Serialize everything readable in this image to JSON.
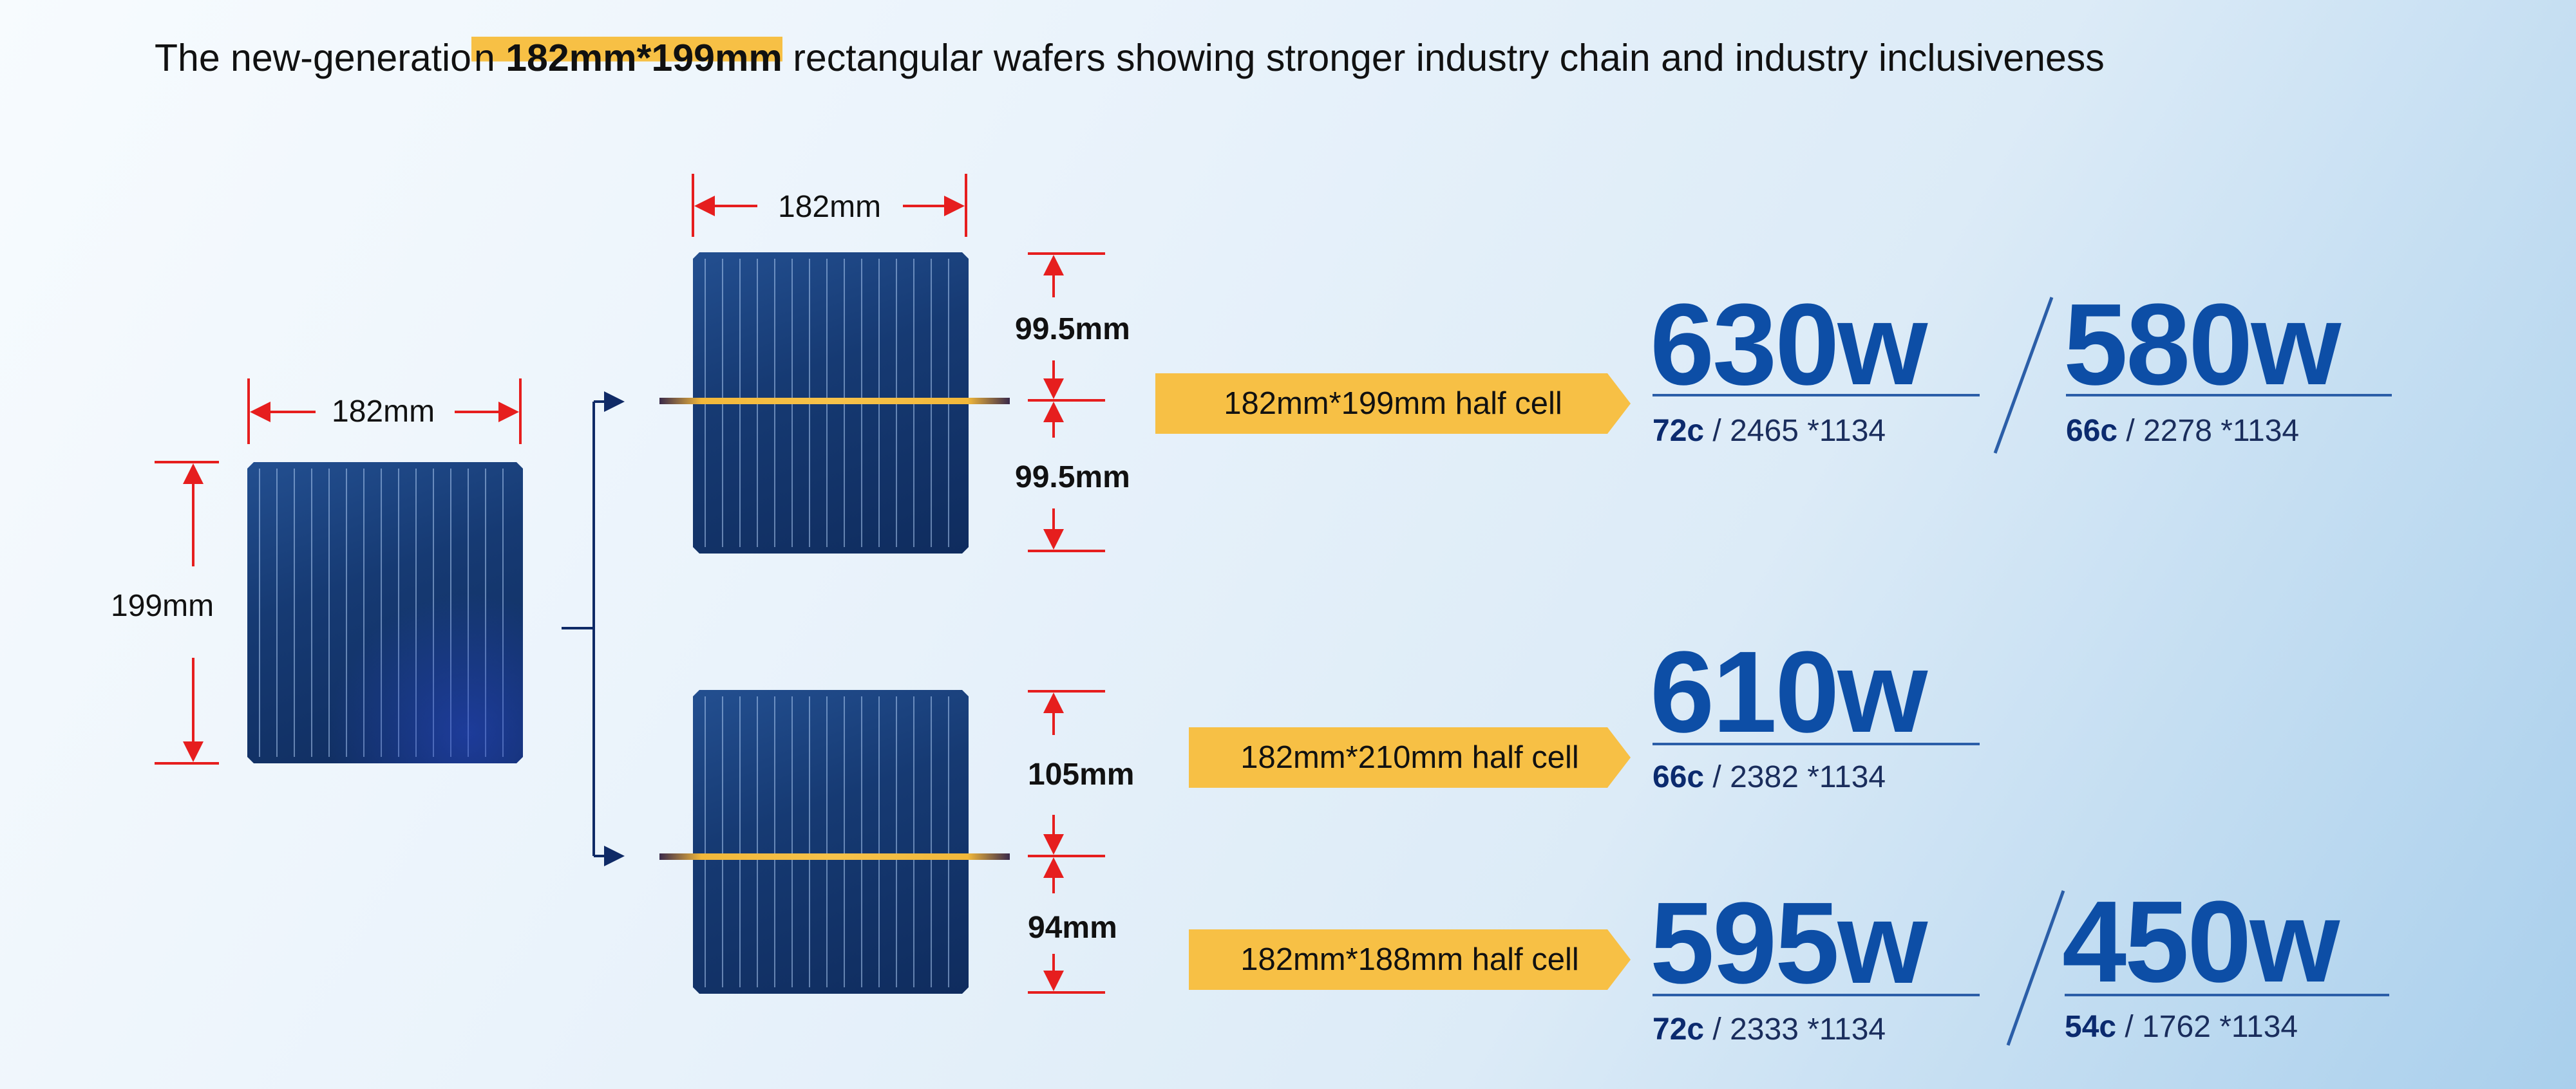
{
  "headline": {
    "prefix": "The new-generatio",
    "highlight_plain": "n ",
    "highlight_bold": "182mm*199mm",
    "suffix": " rectangular wafers showing stronger industry chain and industry inclusiveness"
  },
  "source_wafer": {
    "width_label": "182mm",
    "height_label": "199mm"
  },
  "upper_cell": {
    "width_label": "182mm",
    "top_label": "99.5mm",
    "bottom_label": "99.5mm",
    "tag": "182mm*199mm half cell"
  },
  "lower_cell": {
    "top_label": "105mm",
    "bottom_label": "94mm",
    "tag_top": "182mm*210mm half cell",
    "tag_bottom": "182mm*188mm half cell"
  },
  "modules": [
    {
      "watt": "630w",
      "cells": "72c",
      "size": " / 2465 *1134"
    },
    {
      "watt": "580w",
      "cells": "66c",
      "size": " / 2278 *1134"
    },
    {
      "watt": "610w",
      "cells": "66c",
      "size": " / 2382 *1134"
    },
    {
      "watt": "595w",
      "cells": "72c",
      "size": " / 2333 *1134"
    },
    {
      "watt": "450w",
      "cells": "54c",
      "size": " / 1762 *1134"
    }
  ],
  "colors": {
    "accent_yellow": "#f7c045",
    "watt_blue": "#0d4ea6",
    "dimension_red": "#e61e1e",
    "wafer_navy": "#163a73"
  }
}
